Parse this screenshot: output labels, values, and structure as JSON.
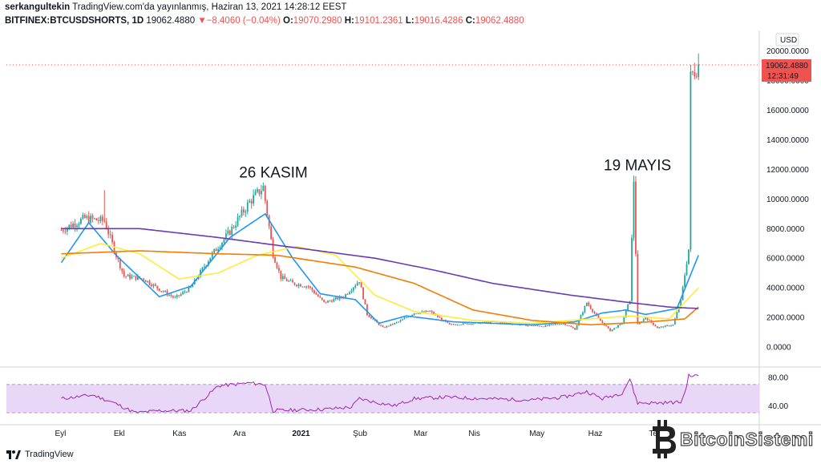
{
  "header": {
    "author": "serkangultekin",
    "published": "TradingView.com'da yayınlanmış, Haziran 13, 2021 14:28:12 EEST",
    "symbol": "BITFINEX:BTCUSDSHORTS, 1D",
    "last": "19062.4880",
    "change_arrow": "▼",
    "change": "−8.4060 (−0.04%)",
    "o_label": "O:",
    "o_value": "19070.2980",
    "h_label": "H:",
    "h_value": "19101.2361",
    "l_label": "L:",
    "l_value": "19016.4286",
    "c_label": "C:",
    "c_value": "19062.4880"
  },
  "price_axis": {
    "currency": "USD",
    "price_tag": "19062.4880",
    "countdown": "12:31:49"
  },
  "annotations": {
    "kasim": "26 KASIM",
    "mayis": "19 MAYIS"
  },
  "footer": {
    "brand": "TradingView"
  },
  "watermark": {
    "text": "BitcoinSistemi"
  },
  "colors": {
    "up": "#26a69a",
    "down": "#ef5350",
    "blue_ma": "#2196f3",
    "yellow_ma": "#ffeb3b",
    "orange_ma": "#f57c00",
    "purple_ma": "#673ab7",
    "rsi": "#9c27b0",
    "rsi_band": "#e8d7f7"
  },
  "chart_data": {
    "type": "candlestick",
    "title": "BITFINEX:BTCUSDSHORTS, 1D",
    "interval": "1D",
    "yaxis": {
      "label": "USD",
      "ylim": [
        -1000,
        21000
      ],
      "ticks": [
        0,
        2000,
        4000,
        6000,
        8000,
        10000,
        12000,
        14000,
        16000,
        18000,
        20000
      ]
    },
    "xaxis": {
      "tick_labels": [
        "Eyl",
        "Ekl",
        "Kas",
        "Ara",
        "2021",
        "Şub",
        "Mar",
        "Nis",
        "May",
        "Haz",
        "Tem"
      ]
    },
    "price_keypoints": [
      [
        0,
        7900
      ],
      [
        12,
        8700
      ],
      [
        22,
        8500
      ],
      [
        28,
        6200
      ],
      [
        32,
        4800
      ],
      [
        42,
        4600
      ],
      [
        50,
        3900
      ],
      [
        58,
        3300
      ],
      [
        66,
        4000
      ],
      [
        76,
        6100
      ],
      [
        86,
        7800
      ],
      [
        96,
        9800
      ],
      [
        103,
        10800
      ],
      [
        108,
        6300
      ],
      [
        112,
        4700
      ],
      [
        118,
        4300
      ],
      [
        126,
        4100
      ],
      [
        134,
        3000
      ],
      [
        144,
        3400
      ],
      [
        152,
        4500
      ],
      [
        156,
        2200
      ],
      [
        164,
        1300
      ],
      [
        172,
        1700
      ],
      [
        180,
        2300
      ],
      [
        188,
        2400
      ],
      [
        198,
        1500
      ],
      [
        210,
        1600
      ],
      [
        222,
        1700
      ],
      [
        234,
        1500
      ],
      [
        246,
        1400
      ],
      [
        256,
        1600
      ],
      [
        262,
        1200
      ],
      [
        268,
        3000
      ],
      [
        274,
        1900
      ],
      [
        280,
        1100
      ],
      [
        286,
        1600
      ],
      [
        290,
        3200
      ],
      [
        292,
        11300
      ],
      [
        294,
        1500
      ],
      [
        298,
        2000
      ],
      [
        304,
        1300
      ],
      [
        312,
        1500
      ],
      [
        316,
        3100
      ],
      [
        318,
        4900
      ],
      [
        320,
        6600
      ],
      [
        321,
        18200
      ],
      [
        323,
        18700
      ],
      [
        325,
        19062
      ]
    ],
    "ma_series": [
      {
        "values": [
          [
            0,
            5700
          ],
          [
            14,
            8400
          ],
          [
            28,
            6200
          ],
          [
            50,
            3400
          ],
          [
            66,
            4100
          ],
          [
            86,
            7400
          ],
          [
            104,
            9000
          ],
          [
            118,
            6000
          ],
          [
            132,
            3600
          ],
          [
            150,
            3200
          ],
          [
            162,
            1600
          ],
          [
            176,
            2100
          ],
          [
            200,
            1700
          ],
          [
            240,
            1500
          ],
          [
            262,
            1700
          ],
          [
            276,
            2300
          ],
          [
            288,
            2500
          ],
          [
            298,
            2200
          ],
          [
            314,
            2600
          ],
          [
            325,
            6200
          ]
        ]
      },
      {
        "values": [
          [
            0,
            6000
          ],
          [
            20,
            7000
          ],
          [
            40,
            6300
          ],
          [
            60,
            4600
          ],
          [
            80,
            5000
          ],
          [
            100,
            6200
          ],
          [
            120,
            6800
          ],
          [
            140,
            6200
          ],
          [
            160,
            3500
          ],
          [
            180,
            2400
          ],
          [
            210,
            1800
          ],
          [
            240,
            1600
          ],
          [
            270,
            1900
          ],
          [
            290,
            2100
          ],
          [
            310,
            1900
          ],
          [
            325,
            4000
          ]
        ]
      },
      {
        "values": [
          [
            0,
            6300
          ],
          [
            40,
            6500
          ],
          [
            80,
            6300
          ],
          [
            110,
            6200
          ],
          [
            150,
            5400
          ],
          [
            180,
            4300
          ],
          [
            210,
            2500
          ],
          [
            240,
            1800
          ],
          [
            270,
            1500
          ],
          [
            300,
            1700
          ],
          [
            318,
            1900
          ],
          [
            325,
            2700
          ]
        ]
      },
      {
        "values": [
          [
            0,
            8000
          ],
          [
            40,
            8000
          ],
          [
            80,
            7400
          ],
          [
            120,
            6700
          ],
          [
            160,
            6000
          ],
          [
            190,
            5200
          ],
          [
            220,
            4300
          ],
          [
            260,
            3500
          ],
          [
            290,
            3000
          ],
          [
            310,
            2700
          ],
          [
            325,
            2600
          ]
        ]
      }
    ],
    "rsi": {
      "band": [
        30,
        70
      ],
      "ticks": [
        40,
        80
      ],
      "keypoints": [
        [
          0,
          50
        ],
        [
          16,
          55
        ],
        [
          26,
          45
        ],
        [
          38,
          30
        ],
        [
          50,
          33
        ],
        [
          66,
          33
        ],
        [
          80,
          68
        ],
        [
          96,
          72
        ],
        [
          104,
          70
        ],
        [
          108,
          33
        ],
        [
          120,
          34
        ],
        [
          134,
          35
        ],
        [
          148,
          38
        ],
        [
          152,
          50
        ],
        [
          160,
          45
        ],
        [
          170,
          40
        ],
        [
          180,
          50
        ],
        [
          196,
          52
        ],
        [
          216,
          50
        ],
        [
          240,
          48
        ],
        [
          256,
          52
        ],
        [
          268,
          60
        ],
        [
          276,
          50
        ],
        [
          286,
          58
        ],
        [
          290,
          78
        ],
        [
          292,
          60
        ],
        [
          294,
          44
        ],
        [
          304,
          44
        ],
        [
          316,
          45
        ],
        [
          318,
          58
        ],
        [
          320,
          82
        ],
        [
          325,
          82
        ]
      ]
    },
    "x_tick_days": [
      0,
      30,
      60,
      91,
      121,
      152,
      183,
      211,
      242,
      272,
      303
    ],
    "annotations": [
      {
        "day": 105,
        "price": 10800,
        "text": "26 KASIM"
      },
      {
        "day": 291,
        "price": 11300,
        "text": "19 MAYIS"
      }
    ],
    "last_price": 19062.488
  }
}
